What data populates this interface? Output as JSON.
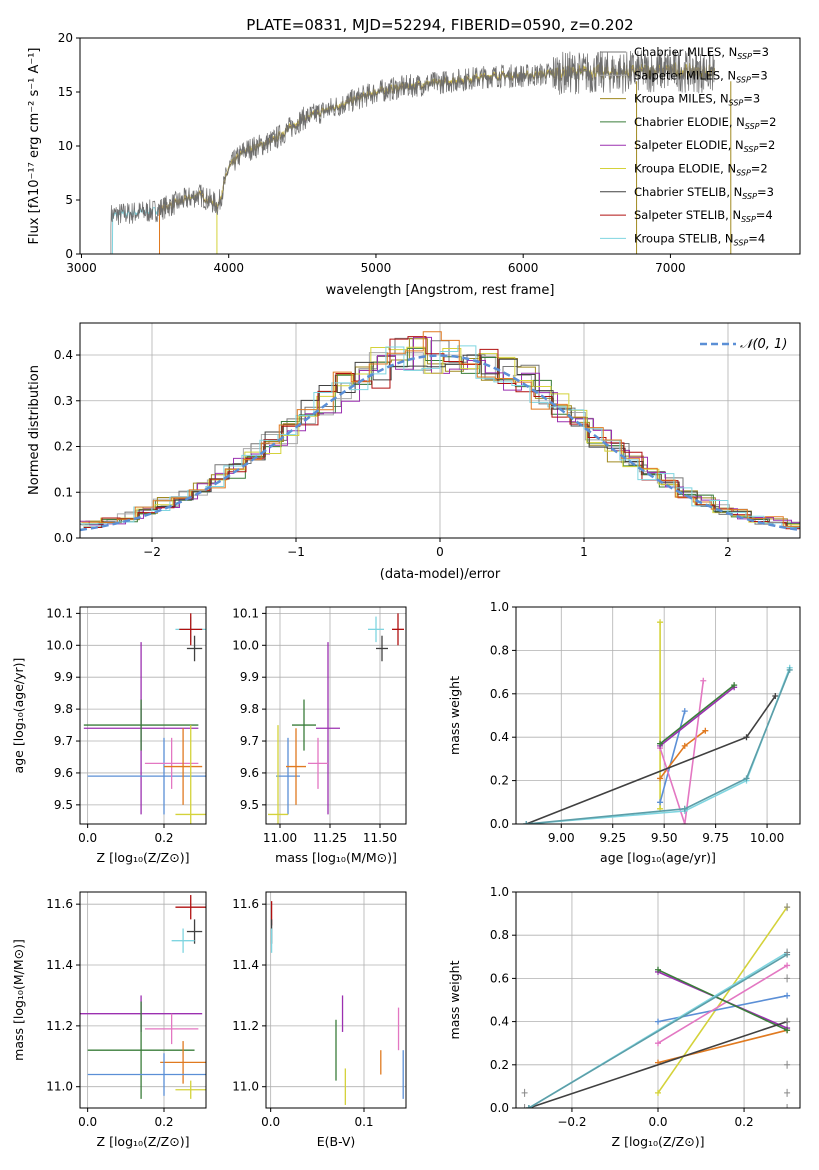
{
  "chart_data": [
    {
      "type": "line",
      "title": "PLATE=0831, MJD=52294, FIBERID=0590, z=0.202",
      "xlabel": "wavelength [Angstrom, rest frame]",
      "ylabel": "Flux [fλ10⁻¹⁷ erg cm⁻² s⁻¹ A⁻¹]",
      "xlim": [
        2990,
        7880
      ],
      "ylim": [
        0,
        20
      ],
      "xticks": [
        3000,
        4000,
        5000,
        6000,
        7000
      ],
      "yticks": [
        0,
        5,
        10,
        15,
        20
      ],
      "legend_position": "upper right",
      "legend": [
        {
          "label": "Chabrier MILES, N",
          "sub": "SSP",
          "suffix": "=3",
          "color": "#777777"
        },
        {
          "label": "Salpeter MILES, N",
          "sub": "SSP",
          "suffix": "=3",
          "color": "#aaaaaa"
        },
        {
          "label": "Kroupa MILES, N",
          "sub": "SSP",
          "suffix": "=3",
          "color": "#a08a20"
        },
        {
          "label": "Chabrier ELODIE, N",
          "sub": "SSP",
          "suffix": "=2",
          "color": "#3a7d3a"
        },
        {
          "label": "Salpeter ELODIE, N",
          "sub": "SSP",
          "suffix": "=2",
          "color": "#9b30b0"
        },
        {
          "label": "Kroupa ELODIE, N",
          "sub": "SSP",
          "suffix": "=2",
          "color": "#d4d23a"
        },
        {
          "label": "Chabrier STELIB, N",
          "sub": "SSP",
          "suffix": "=3",
          "color": "#404040"
        },
        {
          "label": "Salpeter STELIB, N",
          "sub": "SSP",
          "suffix": "=4",
          "color": "#b01010"
        },
        {
          "label": "Kroupa STELIB, N",
          "sub": "SSP",
          "suffix": "=4",
          "color": "#7fd5e0"
        }
      ],
      "spectrum_continuum": {
        "x": [
          3200,
          3500,
          3800,
          3930,
          4000,
          4100,
          4300,
          4500,
          4800,
          5000,
          5200,
          5500,
          5800,
          6000,
          6300,
          6600,
          7000,
          7300
        ],
        "y": [
          3.6,
          4.0,
          5.5,
          4.5,
          8.0,
          9.5,
          10.5,
          12.5,
          14.0,
          15.0,
          15.5,
          16.0,
          16.5,
          16.5,
          16.8,
          16.8,
          17.0,
          16.8
        ]
      },
      "model_starts": [
        {
          "x0": 3210,
          "color": "#7fd5e0"
        },
        {
          "x0": 3530,
          "color": "#e07a20"
        },
        {
          "x0": 3920,
          "color": "#d4d23a"
        }
      ]
    },
    {
      "type": "line",
      "xlabel": "(data-model)/error",
      "ylabel": "Normed distribution",
      "xlim": [
        -2.5,
        2.5
      ],
      "ylim": [
        0,
        0.47
      ],
      "xticks": [
        -2,
        -1,
        0,
        1,
        2
      ],
      "yticks": [
        0.0,
        0.1,
        0.2,
        0.3,
        0.4
      ],
      "legend": [
        {
          "label": "𝒩(0, 1)",
          "color": "#5b8fd6"
        }
      ],
      "histogram_colors": [
        "#777777",
        "#aaaaaa",
        "#a08a20",
        "#3a7d3a",
        "#9b30b0",
        "#d4d23a",
        "#404040",
        "#b01010",
        "#7fd5e0",
        "#e07a20"
      ]
    },
    {
      "type": "scatter",
      "xlabel": "Z [log₁₀(Z/Z⊙)]",
      "ylabel": "age  [log₁₀(age/yr)]",
      "xlim": [
        -0.02,
        0.31
      ],
      "ylim": [
        9.44,
        10.12
      ],
      "xticks": [
        0.0,
        0.2
      ],
      "yticks": [
        9.5,
        9.6,
        9.7,
        9.8,
        9.9,
        10.0,
        10.1
      ],
      "points": [
        {
          "x": 0.27,
          "y": 10.05,
          "xerr": 0.04,
          "yerr": 0.04,
          "color": "#7fd5e0"
        },
        {
          "x": 0.27,
          "y": 10.05,
          "xerr": 0.03,
          "yerr": 0.05,
          "color": "#b01010"
        },
        {
          "x": 0.28,
          "y": 9.99,
          "xerr": 0.02,
          "yerr": 0.04,
          "color": "#404040"
        },
        {
          "x": 0.14,
          "y": 9.74,
          "xerr": 0.15,
          "yerr": 0.27,
          "color": "#9b30b0"
        },
        {
          "x": 0.14,
          "y": 9.75,
          "xerr": 0.15,
          "yerr": 0.08,
          "color": "#3a7d3a"
        },
        {
          "x": 0.2,
          "y": 9.59,
          "xerr": 0.2,
          "yerr": 0.12,
          "color": "#5b8fd6"
        },
        {
          "x": 0.22,
          "y": 9.63,
          "xerr": 0.07,
          "yerr": 0.08,
          "color": "#e377c2"
        },
        {
          "x": 0.25,
          "y": 9.62,
          "xerr": 0.05,
          "yerr": 0.12,
          "color": "#e07a20"
        },
        {
          "x": 0.27,
          "y": 9.47,
          "xerr": 0.04,
          "yerr": 0.28,
          "color": "#d4d23a"
        }
      ]
    },
    {
      "type": "scatter",
      "xlabel": "mass [log₁₀(M/M⊙)]",
      "ylabel": "",
      "xlim": [
        10.93,
        11.63
      ],
      "ylim": [
        9.44,
        10.12
      ],
      "xticks": [
        11.0,
        11.25,
        11.5
      ],
      "yticks": [
        9.5,
        9.6,
        9.7,
        9.8,
        9.9,
        10.0,
        10.1
      ],
      "points": [
        {
          "x": 11.48,
          "y": 10.05,
          "xerr": 0.04,
          "yerr": 0.04,
          "color": "#7fd5e0"
        },
        {
          "x": 11.59,
          "y": 10.05,
          "xerr": 0.03,
          "yerr": 0.05,
          "color": "#b01010"
        },
        {
          "x": 11.51,
          "y": 9.99,
          "xerr": 0.03,
          "yerr": 0.04,
          "color": "#404040"
        },
        {
          "x": 11.24,
          "y": 9.74,
          "xerr": 0.06,
          "yerr": 0.27,
          "color": "#9b30b0"
        },
        {
          "x": 11.12,
          "y": 9.75,
          "xerr": 0.06,
          "yerr": 0.08,
          "color": "#3a7d3a"
        },
        {
          "x": 11.04,
          "y": 9.59,
          "xerr": 0.06,
          "yerr": 0.12,
          "color": "#5b8fd6"
        },
        {
          "x": 11.19,
          "y": 9.63,
          "xerr": 0.05,
          "yerr": 0.08,
          "color": "#e377c2"
        },
        {
          "x": 11.08,
          "y": 9.62,
          "xerr": 0.05,
          "yerr": 0.12,
          "color": "#e07a20"
        },
        {
          "x": 10.99,
          "y": 9.47,
          "xerr": 0.05,
          "yerr": 0.28,
          "color": "#d4d23a"
        }
      ]
    },
    {
      "type": "line",
      "xlabel": "age  [log₁₀(age/yr)]",
      "ylabel": "mass weight",
      "xlim": [
        8.78,
        10.16
      ],
      "ylim": [
        0,
        1
      ],
      "xticks": [
        9.0,
        9.25,
        9.5,
        9.75,
        10.0
      ],
      "yticks": [
        0.0,
        0.2,
        0.4,
        0.6,
        0.8,
        1.0
      ],
      "series": [
        {
          "color": "#d4d23a",
          "x": [
            9.48,
            9.48
          ],
          "y": [
            0.07,
            0.93
          ]
        },
        {
          "color": "#5b8fd6",
          "x": [
            9.48,
            9.6
          ],
          "y": [
            0.1,
            0.52
          ]
        },
        {
          "color": "#e07a20",
          "x": [
            9.48,
            9.6,
            9.7
          ],
          "y": [
            0.21,
            0.36,
            0.43
          ]
        },
        {
          "color": "#e377c2",
          "x": [
            9.48,
            9.6,
            9.69
          ],
          "y": [
            0.35,
            0.0,
            0.66
          ]
        },
        {
          "color": "#9b30b0",
          "x": [
            9.48,
            9.84
          ],
          "y": [
            0.36,
            0.63
          ]
        },
        {
          "color": "#3a7d3a",
          "x": [
            9.48,
            9.84
          ],
          "y": [
            0.37,
            0.64
          ]
        },
        {
          "color": "#404040",
          "x": [
            8.83,
            9.9,
            10.04
          ],
          "y": [
            0.0,
            0.4,
            0.59
          ]
        },
        {
          "color": "#7fd5e0",
          "x": [
            8.83,
            9.6,
            9.9,
            10.11
          ],
          "y": [
            0.0,
            0.06,
            0.2,
            0.72
          ]
        },
        {
          "color": "#5c9ea8",
          "x": [
            8.83,
            9.6,
            9.9,
            10.11
          ],
          "y": [
            0.0,
            0.07,
            0.21,
            0.71
          ]
        }
      ]
    },
    {
      "type": "scatter",
      "xlabel": "Z [log₁₀(Z/Z⊙)]",
      "ylabel": "mass [log₁₀(M/M⊙)]",
      "xlim": [
        -0.02,
        0.31
      ],
      "ylim": [
        10.93,
        11.64
      ],
      "xticks": [
        0.0,
        0.2
      ],
      "yticks": [
        11.0,
        11.2,
        11.4,
        11.6
      ],
      "points": [
        {
          "x": 0.27,
          "y": 11.59,
          "xerr": 0.04,
          "yerr": 0.04,
          "color": "#b01010"
        },
        {
          "x": 0.28,
          "y": 11.51,
          "xerr": 0.02,
          "yerr": 0.04,
          "color": "#404040"
        },
        {
          "x": 0.25,
          "y": 11.48,
          "xerr": 0.03,
          "yerr": 0.04,
          "color": "#7fd5e0"
        },
        {
          "x": 0.14,
          "y": 11.24,
          "xerr": 0.16,
          "yerr": 0.06,
          "color": "#9b30b0"
        },
        {
          "x": 0.22,
          "y": 11.19,
          "xerr": 0.07,
          "yerr": 0.05,
          "color": "#e377c2"
        },
        {
          "x": 0.14,
          "y": 11.12,
          "xerr": 0.14,
          "yerr": 0.16,
          "color": "#3a7d3a"
        },
        {
          "x": 0.25,
          "y": 11.08,
          "xerr": 0.06,
          "yerr": 0.07,
          "color": "#e07a20"
        },
        {
          "x": 0.2,
          "y": 11.04,
          "xerr": 0.2,
          "yerr": 0.07,
          "color": "#5b8fd6"
        },
        {
          "x": 0.27,
          "y": 10.99,
          "xerr": 0.04,
          "yerr": 0.03,
          "color": "#d4d23a"
        }
      ]
    },
    {
      "type": "scatter",
      "xlabel": "E(B-V)",
      "ylabel": "",
      "xlim": [
        -0.005,
        0.145
      ],
      "ylim": [
        10.93,
        11.64
      ],
      "xticks": [
        0.0,
        0.1
      ],
      "yticks": [
        11.0,
        11.2,
        11.4,
        11.6
      ],
      "points": [
        {
          "x": 0.001,
          "y": 11.57,
          "xerr": 0,
          "yerr": 0.04,
          "color": "#b01010"
        },
        {
          "x": 0.001,
          "y": 11.51,
          "xerr": 0,
          "yerr": 0.04,
          "color": "#404040"
        },
        {
          "x": 0.001,
          "y": 11.48,
          "xerr": 0,
          "yerr": 0.04,
          "color": "#7fd5e0"
        },
        {
          "x": 0.077,
          "y": 11.24,
          "xerr": 0,
          "yerr": 0.06,
          "color": "#9b30b0"
        },
        {
          "x": 0.137,
          "y": 11.19,
          "xerr": 0,
          "yerr": 0.07,
          "color": "#e377c2"
        },
        {
          "x": 0.07,
          "y": 11.12,
          "xerr": 0,
          "yerr": 0.1,
          "color": "#3a7d3a"
        },
        {
          "x": 0.118,
          "y": 11.08,
          "xerr": 0,
          "yerr": 0.04,
          "color": "#e07a20"
        },
        {
          "x": 0.142,
          "y": 11.04,
          "xerr": 0,
          "yerr": 0.08,
          "color": "#5b8fd6"
        },
        {
          "x": 0.08,
          "y": 11.0,
          "xerr": 0,
          "yerr": 0.06,
          "color": "#d4d23a"
        }
      ]
    },
    {
      "type": "line",
      "xlabel": "Z [log₁₀(Z/Z⊙)]",
      "ylabel": "mass weight",
      "xlim": [
        -0.33,
        0.33
      ],
      "ylim": [
        0,
        1
      ],
      "xticks": [
        -0.2,
        0.0,
        0.2
      ],
      "yticks": [
        0.0,
        0.2,
        0.4,
        0.6,
        0.8,
        1.0
      ],
      "series": [
        {
          "color": "#d4d23a",
          "x": [
            0.0,
            0.3
          ],
          "y": [
            0.07,
            0.93
          ]
        },
        {
          "color": "#5b8fd6",
          "x": [
            0.0,
            0.3
          ],
          "y": [
            0.4,
            0.52
          ]
        },
        {
          "color": "#e07a20",
          "x": [
            0.0,
            0.3
          ],
          "y": [
            0.21,
            0.36
          ]
        },
        {
          "color": "#e377c2",
          "x": [
            0.0,
            0.3
          ],
          "y": [
            0.3,
            0.66
          ]
        },
        {
          "color": "#9b30b0",
          "x": [
            0.0,
            0.3
          ],
          "y": [
            0.63,
            0.37
          ]
        },
        {
          "color": "#3a7d3a",
          "x": [
            0.0,
            0.3
          ],
          "y": [
            0.64,
            0.36
          ]
        },
        {
          "color": "#404040",
          "x": [
            -0.3,
            0.3
          ],
          "y": [
            0.0,
            0.4
          ]
        },
        {
          "color": "#7fd5e0",
          "x": [
            -0.3,
            0.3
          ],
          "y": [
            0.0,
            0.72
          ]
        },
        {
          "color": "#5c9ea8",
          "x": [
            -0.3,
            0.3
          ],
          "y": [
            0.0,
            0.71
          ]
        }
      ],
      "vertical_markers": [
        {
          "x": 0.3,
          "y": [
            0.0,
            0.07,
            0.2,
            0.4,
            0.6,
            0.72,
            0.93
          ]
        },
        {
          "x": -0.31,
          "y": [
            0.0,
            0.07
          ]
        }
      ]
    }
  ]
}
